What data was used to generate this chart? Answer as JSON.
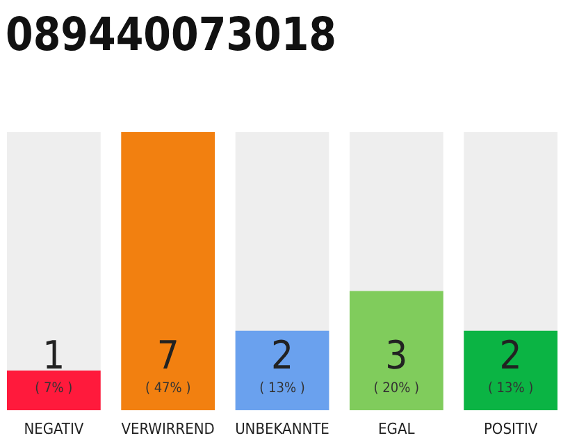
{
  "chart_data": {
    "type": "bar",
    "title": "089440073018",
    "categories": [
      "NEGATIV",
      "VERWIRREND",
      "UNBEKANNTE",
      "EGAL",
      "POSITIV"
    ],
    "values": [
      1,
      7,
      2,
      3,
      2
    ],
    "colors": [
      "#ff1a3c",
      "#f28010",
      "#6aa1ee",
      "#80cc5c",
      "#0bb444"
    ],
    "data_labels": true,
    "annotations": [
      "( 7% )",
      "( 47% )",
      "( 13% )",
      "( 20% )",
      "( 13% )"
    ]
  }
}
